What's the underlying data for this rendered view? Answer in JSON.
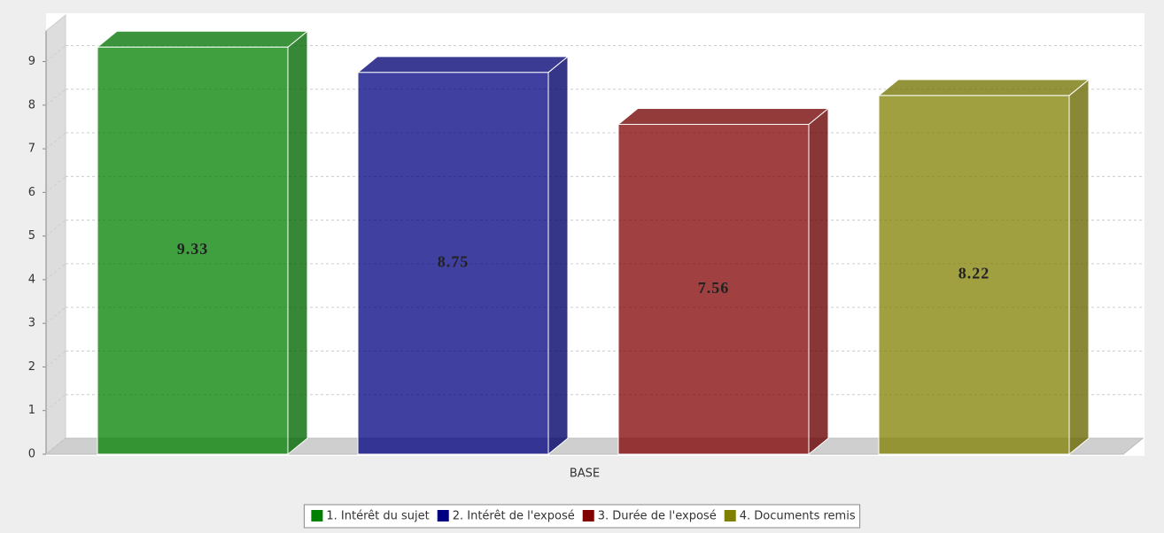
{
  "chart_data": {
    "type": "bar3d",
    "categories": [
      "BASE"
    ],
    "series": [
      {
        "name": "1. Intérêt du sujet",
        "color": "#008000",
        "values": [
          9.33
        ]
      },
      {
        "name": "2. Intérêt de l'exposé",
        "color": "#000080",
        "values": [
          8.75
        ]
      },
      {
        "name": "3. Durée de l'exposé",
        "color": "#800000",
        "values": [
          7.56
        ]
      },
      {
        "name": "4. Documents remis",
        "color": "#808000",
        "values": [
          8.22
        ]
      }
    ],
    "ylim": [
      0,
      9.7
    ],
    "yticks": [
      0,
      1,
      2,
      3,
      4,
      5,
      6,
      7,
      8,
      9
    ],
    "grid": true,
    "legend": "bottom"
  }
}
